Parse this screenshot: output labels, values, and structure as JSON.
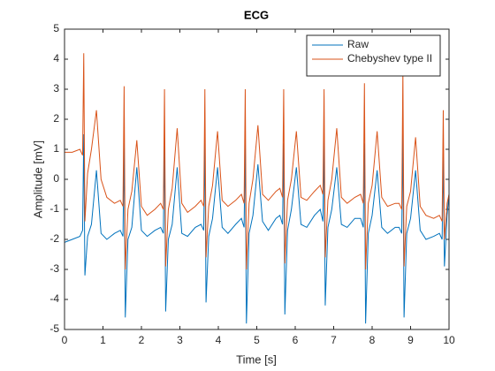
{
  "chart_data": {
    "type": "line",
    "title": "ECG",
    "xlabel": "Time [s]",
    "ylabel": "Amplitude [mV]",
    "x": [
      0,
      0.2,
      0.4,
      0.47,
      0.5,
      0.53,
      0.6,
      0.7,
      0.83,
      0.95,
      1.1,
      1.3,
      1.45,
      1.52,
      1.55,
      1.58,
      1.65,
      1.75,
      1.88,
      2.0,
      2.15,
      2.35,
      2.5,
      2.57,
      2.6,
      2.63,
      2.7,
      2.8,
      2.93,
      3.05,
      3.2,
      3.4,
      3.55,
      3.62,
      3.65,
      3.68,
      3.75,
      3.85,
      3.98,
      4.1,
      4.25,
      4.45,
      4.6,
      4.67,
      4.7,
      4.73,
      4.8,
      4.9,
      5.03,
      5.15,
      5.3,
      5.5,
      5.6,
      5.67,
      5.7,
      5.73,
      5.8,
      5.9,
      6.03,
      6.15,
      6.3,
      6.5,
      6.65,
      6.72,
      6.75,
      6.78,
      6.85,
      6.95,
      7.08,
      7.2,
      7.35,
      7.55,
      7.7,
      7.77,
      7.8,
      7.83,
      7.9,
      8.0,
      8.13,
      8.25,
      8.4,
      8.6,
      8.7,
      8.77,
      8.8,
      8.83,
      8.9,
      9.0,
      9.13,
      9.25,
      9.4,
      9.6,
      9.75,
      9.82,
      9.85,
      9.88,
      9.95,
      10
    ],
    "series": [
      {
        "name": "Raw",
        "color": "#0072BD",
        "values": [
          -2.1,
          -2.0,
          -1.9,
          -1.7,
          1.5,
          -3.2,
          -1.9,
          -1.5,
          0.3,
          -1.8,
          -2.0,
          -1.8,
          -1.7,
          -1.9,
          1.2,
          -4.6,
          -2.0,
          -1.6,
          0.4,
          -1.7,
          -1.9,
          -1.7,
          -1.6,
          -1.8,
          1.3,
          -4.4,
          -2.0,
          -1.5,
          0.4,
          -1.8,
          -1.9,
          -1.6,
          -1.5,
          -1.7,
          1.3,
          -4.1,
          -1.9,
          -1.3,
          0.4,
          -1.6,
          -1.8,
          -1.5,
          -1.3,
          -1.6,
          1.3,
          -4.8,
          -1.8,
          -1.2,
          0.5,
          -1.4,
          -1.7,
          -1.3,
          -1.2,
          -1.5,
          1.2,
          -4.5,
          -1.7,
          -1.0,
          0.4,
          -1.5,
          -1.6,
          -1.2,
          -1.0,
          -1.4,
          1.3,
          -4.2,
          -1.6,
          -1.0,
          0.4,
          -1.5,
          -1.6,
          -1.3,
          -1.3,
          -1.6,
          1.2,
          -4.8,
          -1.8,
          -1.2,
          0.3,
          -1.6,
          -1.8,
          -1.6,
          -1.6,
          -1.8,
          1.5,
          -4.6,
          -1.8,
          -1.3,
          0.3,
          -1.7,
          -2.0,
          -1.9,
          -1.8,
          -2.0,
          0.8,
          -2.9,
          -1.2,
          -0.5
        ]
      },
      {
        "name": "Chebyshev type II",
        "color": "#D95319",
        "values": [
          0.9,
          0.9,
          1.0,
          0.8,
          4.2,
          -1.4,
          0.2,
          1.0,
          2.3,
          0.0,
          -0.6,
          -0.8,
          -0.7,
          -0.9,
          3.1,
          -3.0,
          -1.0,
          -0.4,
          1.3,
          -0.9,
          -1.2,
          -1.0,
          -0.8,
          -1.0,
          3.0,
          -2.9,
          -1.0,
          -0.3,
          1.7,
          -0.8,
          -1.1,
          -0.9,
          -0.7,
          -0.9,
          3.0,
          -2.6,
          -0.9,
          -0.2,
          1.6,
          -0.7,
          -0.9,
          -0.7,
          -0.5,
          -0.8,
          3.0,
          -3.0,
          -0.8,
          0.0,
          1.8,
          -0.5,
          -0.7,
          -0.4,
          -0.3,
          -0.6,
          3.0,
          -2.8,
          -0.7,
          0.0,
          1.6,
          -0.6,
          -0.7,
          -0.4,
          -0.2,
          -0.5,
          3.0,
          -2.6,
          -0.7,
          0.0,
          1.7,
          -0.6,
          -0.8,
          -0.6,
          -0.5,
          -0.8,
          3.2,
          -3.0,
          -0.8,
          -0.2,
          1.6,
          -0.6,
          -0.9,
          -0.8,
          -0.8,
          -1.0,
          3.6,
          -2.9,
          -0.9,
          -0.4,
          1.4,
          -0.9,
          -1.2,
          -1.3,
          -1.2,
          -1.4,
          2.3,
          -2.0,
          -0.8,
          -0.5
        ]
      }
    ],
    "xlim": [
      0,
      10
    ],
    "ylim": [
      -5,
      5
    ],
    "xticks": [
      0,
      1,
      2,
      3,
      4,
      5,
      6,
      7,
      8,
      9,
      10
    ],
    "yticks": [
      -5,
      -4,
      -3,
      -2,
      -1,
      0,
      1,
      2,
      3,
      4,
      5
    ],
    "legend": "northeast"
  }
}
